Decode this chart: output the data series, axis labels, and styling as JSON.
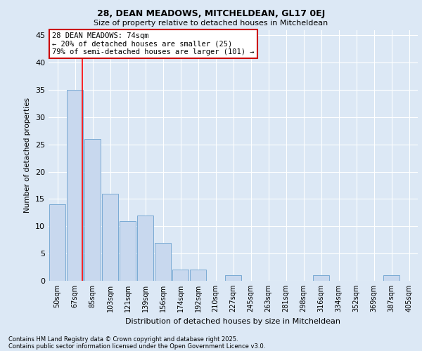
{
  "title1": "28, DEAN MEADOWS, MITCHELDEAN, GL17 0EJ",
  "title2": "Size of property relative to detached houses in Mitcheldean",
  "xlabel": "Distribution of detached houses by size in Mitcheldean",
  "ylabel": "Number of detached properties",
  "categories": [
    "50sqm",
    "67sqm",
    "85sqm",
    "103sqm",
    "121sqm",
    "139sqm",
    "156sqm",
    "174sqm",
    "192sqm",
    "210sqm",
    "227sqm",
    "245sqm",
    "263sqm",
    "281sqm",
    "298sqm",
    "316sqm",
    "334sqm",
    "352sqm",
    "369sqm",
    "387sqm",
    "405sqm"
  ],
  "values": [
    14,
    35,
    26,
    16,
    11,
    12,
    7,
    2,
    2,
    0,
    1,
    0,
    0,
    0,
    0,
    1,
    0,
    0,
    0,
    1,
    0
  ],
  "bar_color": "#c8d8ee",
  "bar_edge_color": "#7aaad4",
  "red_line_x": 1.425,
  "annotation_title": "28 DEAN MEADOWS: 74sqm",
  "annotation_line1": "← 20% of detached houses are smaller (25)",
  "annotation_line2": "79% of semi-detached houses are larger (101) →",
  "ylim": [
    0,
    46
  ],
  "yticks": [
    0,
    5,
    10,
    15,
    20,
    25,
    30,
    35,
    40,
    45
  ],
  "footer1": "Contains HM Land Registry data © Crown copyright and database right 2025.",
  "footer2": "Contains public sector information licensed under the Open Government Licence v3.0.",
  "bg_color": "#dce8f5",
  "plot_bg_color": "#dce8f5",
  "grid_color": "#ffffff",
  "annotation_box_facecolor": "#ffffff",
  "annotation_border_color": "#cc0000"
}
